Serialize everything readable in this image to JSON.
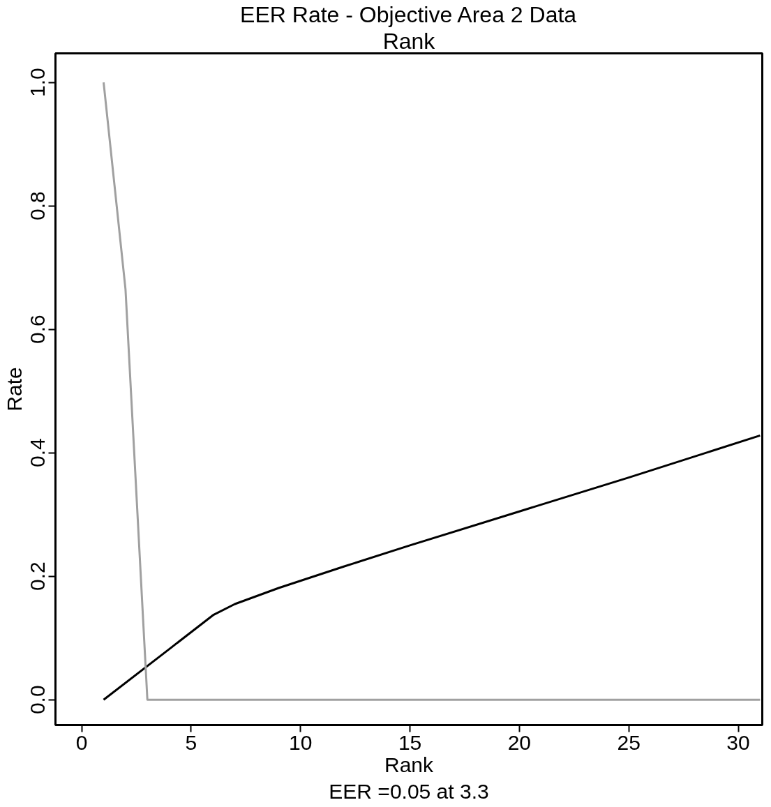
{
  "chart_data": {
    "type": "line",
    "title": "EER Rate - Objective Area 2 Data",
    "subtitle": "Rank",
    "xlabel": "Rank",
    "ylabel": "Rate",
    "annotations": [
      "EER =0.05 at 3.3"
    ],
    "xlim": [
      -1.2,
      31.1
    ],
    "ylim": [
      -0.041,
      1.047
    ],
    "xticks": [
      0,
      5,
      10,
      15,
      20,
      25,
      30
    ],
    "yticks": [
      {
        "value": 0,
        "label": "0.0"
      },
      {
        "value": 0.2,
        "label": "0.2"
      },
      {
        "value": 0.4,
        "label": "0.4"
      },
      {
        "value": 0.6,
        "label": "0.6"
      },
      {
        "value": 0.8,
        "label": "0.8"
      },
      {
        "value": 1,
        "label": "1.0"
      }
    ],
    "grid": false,
    "marker": "none",
    "line_style": "solid",
    "series": [
      {
        "color": "#000000",
        "x": [
          1,
          4,
          6,
          7,
          9,
          12,
          15,
          20,
          25,
          31
        ],
        "values": [
          0,
          0.082,
          0.137,
          0.155,
          0.181,
          0.216,
          0.25,
          0.305,
          0.36,
          0.428
        ]
      },
      {
        "color": "#a0a0a0",
        "x": [
          1,
          2,
          3,
          31
        ],
        "values": [
          1.0,
          0.665,
          0,
          0
        ]
      }
    ]
  }
}
